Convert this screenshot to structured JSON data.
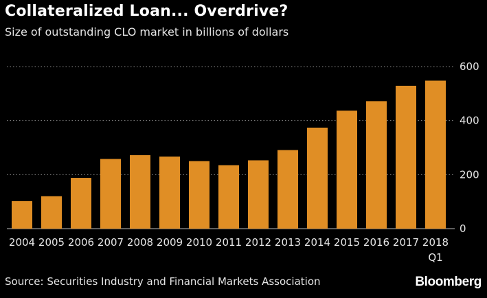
{
  "header": {
    "title": "Collateralized Loan... Overdrive?",
    "subtitle": "Size of outstanding CLO market in billions of dollars"
  },
  "footer": {
    "source": "Source: Securities Industry and Financial Markets Association",
    "brand": "Bloomberg"
  },
  "colors": {
    "background": "#000000",
    "bar": "#e08e25",
    "text": "#ffffff",
    "grid": "#8a8a8a"
  },
  "chart_data": {
    "type": "bar",
    "categories": [
      "2004",
      "2005",
      "2006",
      "2007",
      "2008",
      "2009",
      "2010",
      "2011",
      "2012",
      "2013",
      "2014",
      "2015",
      "2016",
      "2017",
      "2018 Q1"
    ],
    "category_labels": [
      [
        "2004"
      ],
      [
        "2005"
      ],
      [
        "2006"
      ],
      [
        "2007"
      ],
      [
        "2008"
      ],
      [
        "2009"
      ],
      [
        "2010"
      ],
      [
        "2011"
      ],
      [
        "2012"
      ],
      [
        "2013"
      ],
      [
        "2014"
      ],
      [
        "2015"
      ],
      [
        "2016"
      ],
      [
        "2017"
      ],
      [
        "2018",
        "Q1"
      ]
    ],
    "values": [
      102,
      120,
      188,
      258,
      272,
      267,
      250,
      235,
      253,
      291,
      374,
      437,
      472,
      529,
      548
    ],
    "title": "Collateralized Loan... Overdrive?",
    "subtitle": "Size of outstanding CLO market in billions of dollars",
    "xlabel": "",
    "ylabel": "",
    "ylim": [
      0,
      600
    ],
    "yticks": [
      0,
      200,
      400,
      600
    ],
    "ytick_labels": [
      "0",
      "200",
      "400",
      "600"
    ],
    "y_axis_side": "right",
    "grid": true,
    "grid_style": "dotted",
    "legend": "none"
  }
}
